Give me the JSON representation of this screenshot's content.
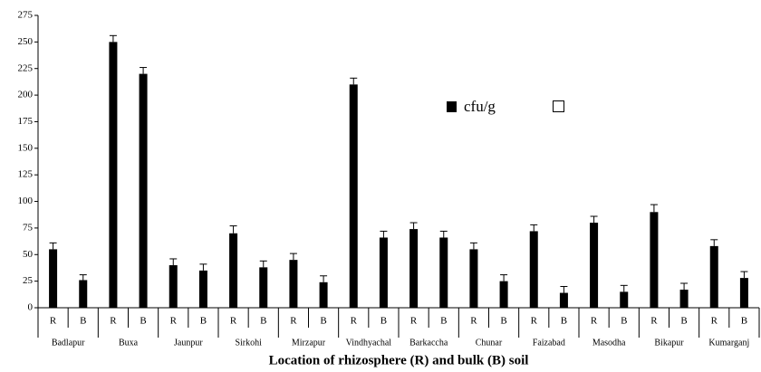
{
  "chart_data": {
    "type": "bar",
    "categories": [
      "R",
      "B",
      "R",
      "B",
      "R",
      "B",
      "R",
      "B",
      "R",
      "B",
      "R",
      "B",
      "R",
      "B",
      "R",
      "B",
      "R",
      "B",
      "R",
      "B",
      "R",
      "B",
      "R",
      "B"
    ],
    "groups": [
      "Badlapur",
      "Buxa",
      "Jaunpur",
      "Sirkohi",
      "Mirzapur",
      "Vindhyachal",
      "Barkaccha",
      "Chunar",
      "Faizabad",
      "Masodha",
      "Bikapur",
      "Kumarganj"
    ],
    "series": [
      {
        "name": "cfu/g",
        "color": "#000000",
        "values": [
          55,
          26,
          250,
          220,
          40,
          35,
          70,
          38,
          45,
          24,
          210,
          66,
          74,
          66,
          55,
          25,
          72,
          14,
          80,
          15,
          90,
          17,
          58,
          28
        ],
        "errors": [
          6,
          5,
          6,
          6,
          6,
          6,
          7,
          6,
          6,
          6,
          6,
          6,
          6,
          6,
          6,
          6,
          6,
          6,
          6,
          6,
          7,
          6,
          6,
          6
        ]
      }
    ],
    "x_label": "Location of rhizosphere (R) and bulk (B) soil",
    "ylim": [
      0,
      275
    ],
    "yticks": [
      0,
      25,
      50,
      75,
      100,
      125,
      150,
      175,
      200,
      225,
      250,
      275
    ],
    "grid": false
  }
}
